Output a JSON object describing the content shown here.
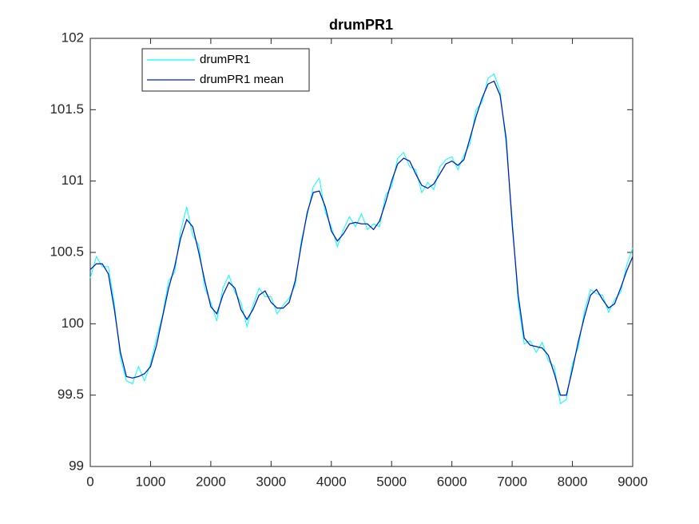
{
  "chart_data": {
    "type": "line",
    "title": "drumPR1",
    "x": [
      0,
      100,
      200,
      300,
      400,
      500,
      600,
      700,
      800,
      900,
      1000,
      1100,
      1200,
      1300,
      1400,
      1500,
      1600,
      1700,
      1800,
      1900,
      2000,
      2100,
      2200,
      2300,
      2400,
      2500,
      2600,
      2700,
      2800,
      2900,
      3000,
      3100,
      3200,
      3300,
      3400,
      3500,
      3600,
      3700,
      3800,
      3900,
      4000,
      4100,
      4200,
      4300,
      4400,
      4500,
      4600,
      4700,
      4800,
      4900,
      5000,
      5100,
      5200,
      5300,
      5400,
      5500,
      5600,
      5700,
      5800,
      5900,
      6000,
      6100,
      6200,
      6300,
      6400,
      6500,
      6600,
      6700,
      6800,
      6900,
      7000,
      7100,
      7200,
      7300,
      7400,
      7500,
      7600,
      7700,
      7800,
      7900,
      8000,
      8100,
      8200,
      8300,
      8400,
      8500,
      8600,
      8700,
      8800,
      8900,
      9000
    ],
    "series": [
      {
        "name": "drumPR1",
        "color": "#00ffff",
        "values": [
          100.32,
          100.47,
          100.4,
          100.4,
          100.14,
          99.76,
          99.6,
          99.58,
          99.7,
          99.6,
          99.72,
          99.9,
          100.06,
          100.3,
          100.36,
          100.65,
          100.82,
          100.62,
          100.55,
          100.25,
          100.15,
          100.02,
          100.25,
          100.34,
          100.22,
          100.15,
          99.98,
          100.13,
          100.25,
          100.19,
          100.19,
          100.07,
          100.13,
          100.18,
          100.27,
          100.58,
          100.76,
          100.96,
          101.02,
          100.78,
          100.68,
          100.54,
          100.66,
          100.75,
          100.68,
          100.77,
          100.66,
          100.7,
          100.68,
          100.9,
          100.96,
          101.16,
          101.2,
          101.1,
          101.08,
          100.92,
          100.99,
          100.94,
          101.1,
          101.15,
          101.17,
          101.08,
          101.18,
          101.26,
          101.5,
          101.55,
          101.72,
          101.75,
          101.63,
          101.26,
          100.74,
          100.15,
          99.86,
          99.88,
          99.8,
          99.87,
          99.74,
          99.7,
          99.44,
          99.47,
          99.72,
          99.84,
          100.09,
          100.24,
          100.21,
          100.2,
          100.08,
          100.17,
          100.22,
          100.41,
          100.53
        ]
      },
      {
        "name": "drumPR1 mean",
        "color": "#0022bb",
        "values": [
          100.38,
          100.42,
          100.42,
          100.35,
          100.1,
          99.8,
          99.63,
          99.62,
          99.63,
          99.65,
          99.7,
          99.85,
          100.05,
          100.25,
          100.4,
          100.6,
          100.73,
          100.68,
          100.5,
          100.3,
          100.12,
          100.07,
          100.2,
          100.29,
          100.25,
          100.1,
          100.03,
          100.1,
          100.2,
          100.23,
          100.15,
          100.11,
          100.11,
          100.15,
          100.3,
          100.55,
          100.78,
          100.92,
          100.93,
          100.82,
          100.65,
          100.58,
          100.63,
          100.7,
          100.71,
          100.7,
          100.7,
          100.66,
          100.72,
          100.85,
          101.0,
          101.12,
          101.16,
          101.14,
          101.05,
          100.97,
          100.95,
          100.98,
          101.05,
          101.12,
          101.14,
          101.11,
          101.15,
          101.3,
          101.45,
          101.58,
          101.68,
          101.7,
          101.6,
          101.3,
          100.7,
          100.2,
          99.9,
          99.85,
          99.84,
          99.83,
          99.78,
          99.65,
          99.5,
          99.5,
          99.68,
          99.88,
          100.05,
          100.2,
          100.24,
          100.17,
          100.11,
          100.14,
          100.25,
          100.37,
          100.47
        ]
      }
    ],
    "xlim": [
      0,
      9000
    ],
    "xticks": [
      0,
      1000,
      2000,
      3000,
      4000,
      5000,
      6000,
      7000,
      8000,
      9000
    ],
    "ylim": [
      99,
      102
    ],
    "yticks": [
      99,
      99.5,
      100,
      100.5,
      101,
      101.5,
      102
    ],
    "grid": false,
    "legend": "top-left"
  }
}
